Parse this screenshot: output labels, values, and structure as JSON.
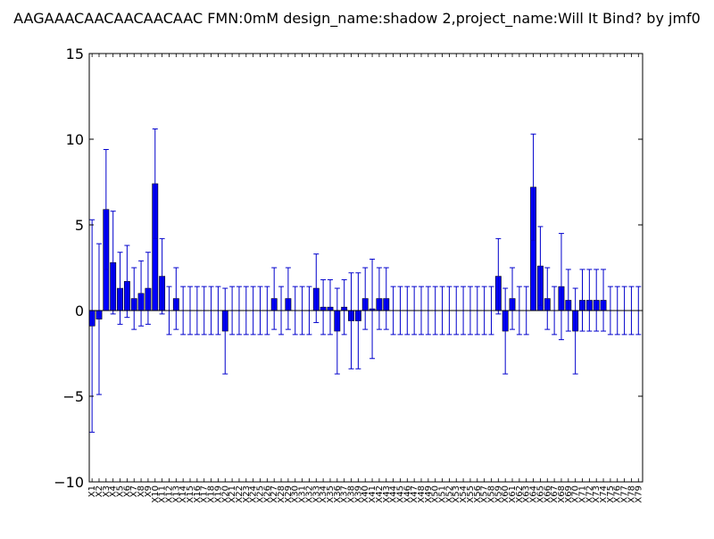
{
  "chart_data": {
    "type": "bar",
    "title": "AAGAAACAACAACAACAAC  FMN:0mM  design_name:shadow 2,project_name:Will It Bind? by jmf0",
    "xlabel": "",
    "ylabel": "",
    "ylim": [
      -10,
      15
    ],
    "yticks": [
      -10,
      -5,
      0,
      5,
      10,
      15
    ],
    "ytick_labels": [
      "−10",
      "−5",
      "0",
      "5",
      "10",
      "15"
    ],
    "grid": false,
    "legend": "none",
    "colors": {
      "bar": "#0000ff",
      "error": "#0000cc",
      "axis": "#000000",
      "background": "#ffffff"
    },
    "categories": [
      "X1",
      "X2",
      "X3",
      "X4",
      "X5",
      "X6",
      "X7",
      "X8",
      "X9",
      "X10",
      "X11",
      "X12",
      "X13",
      "X14",
      "X15",
      "X16",
      "X17",
      "X18",
      "X19",
      "X20",
      "X21",
      "X22",
      "X23",
      "X24",
      "X25",
      "X26",
      "X27",
      "X28",
      "X29",
      "X30",
      "X31",
      "X32",
      "X33",
      "X34",
      "X35",
      "X36",
      "X37",
      "X38",
      "X39",
      "X40",
      "X41",
      "X42",
      "X43",
      "X44",
      "X45",
      "X46",
      "X47",
      "X48",
      "X49",
      "X50",
      "X51",
      "X52",
      "X53",
      "X54",
      "X55",
      "X56",
      "X57",
      "X58",
      "X59",
      "X60",
      "X61",
      "X62",
      "X63",
      "X64",
      "X65",
      "X66",
      "X67",
      "X68",
      "X69",
      "X70",
      "X71",
      "X72",
      "X73",
      "X74",
      "X75",
      "X76",
      "X77",
      "X78",
      "X79"
    ],
    "values": [
      -0.9,
      -0.5,
      5.9,
      2.8,
      1.3,
      1.7,
      0.7,
      1.0,
      1.3,
      7.4,
      2.0,
      0,
      0.7,
      0,
      0,
      0,
      0,
      0,
      0,
      -1.2,
      0,
      0,
      0,
      0,
      0,
      0,
      0.7,
      0,
      0.7,
      0,
      0,
      0,
      1.3,
      0.2,
      0.2,
      -1.2,
      0.2,
      -0.6,
      -0.6,
      0.7,
      0.1,
      0.7,
      0.7,
      0,
      0,
      0,
      0,
      0,
      0,
      0,
      0,
      0,
      0,
      0,
      0,
      0,
      0,
      0,
      2.0,
      -1.2,
      0.7,
      0,
      0,
      7.2,
      2.6,
      0.7,
      0,
      1.4,
      0.6,
      -1.2,
      0.6,
      0.6,
      0.6,
      0.6,
      0,
      0,
      0,
      0,
      0
    ],
    "errors": [
      6.2,
      4.4,
      3.5,
      3.0,
      2.1,
      2.1,
      1.8,
      1.9,
      2.1,
      3.2,
      2.2,
      1.4,
      1.8,
      1.4,
      1.4,
      1.4,
      1.4,
      1.4,
      1.4,
      2.5,
      1.4,
      1.4,
      1.4,
      1.4,
      1.4,
      1.4,
      1.8,
      1.4,
      1.8,
      1.4,
      1.4,
      1.4,
      2.0,
      1.6,
      1.6,
      2.5,
      1.6,
      2.8,
      2.8,
      1.8,
      2.9,
      1.8,
      1.8,
      1.4,
      1.4,
      1.4,
      1.4,
      1.4,
      1.4,
      1.4,
      1.4,
      1.4,
      1.4,
      1.4,
      1.4,
      1.4,
      1.4,
      1.4,
      2.2,
      2.5,
      1.8,
      1.4,
      1.4,
      3.1,
      2.3,
      1.8,
      1.4,
      3.1,
      1.8,
      2.5,
      1.8,
      1.8,
      1.8,
      1.8,
      1.4,
      1.4,
      1.4,
      1.4,
      1.4
    ]
  }
}
